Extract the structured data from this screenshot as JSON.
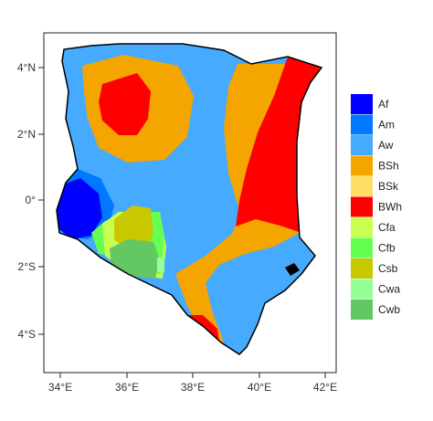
{
  "map": {
    "x_ticks": [
      "34°E",
      "36°E",
      "38°E",
      "40°E",
      "42°E"
    ],
    "y_ticks": [
      "4°N",
      "2°N",
      "0°",
      "2°S",
      "4°S"
    ],
    "legend": [
      {
        "code": "Af",
        "color": "#0000ff"
      },
      {
        "code": "Am",
        "color": "#0078ff"
      },
      {
        "code": "Aw",
        "color": "#46aaff"
      },
      {
        "code": "BSh",
        "color": "#f5a500"
      },
      {
        "code": "BSk",
        "color": "#ffdc64"
      },
      {
        "code": "BWh",
        "color": "#ff0000"
      },
      {
        "code": "Cfa",
        "color": "#c8ff50"
      },
      {
        "code": "Cfb",
        "color": "#64ff50"
      },
      {
        "code": "Csb",
        "color": "#c8c800"
      },
      {
        "code": "Cwa",
        "color": "#96ff96"
      },
      {
        "code": "Cwb",
        "color": "#63c764"
      }
    ]
  }
}
